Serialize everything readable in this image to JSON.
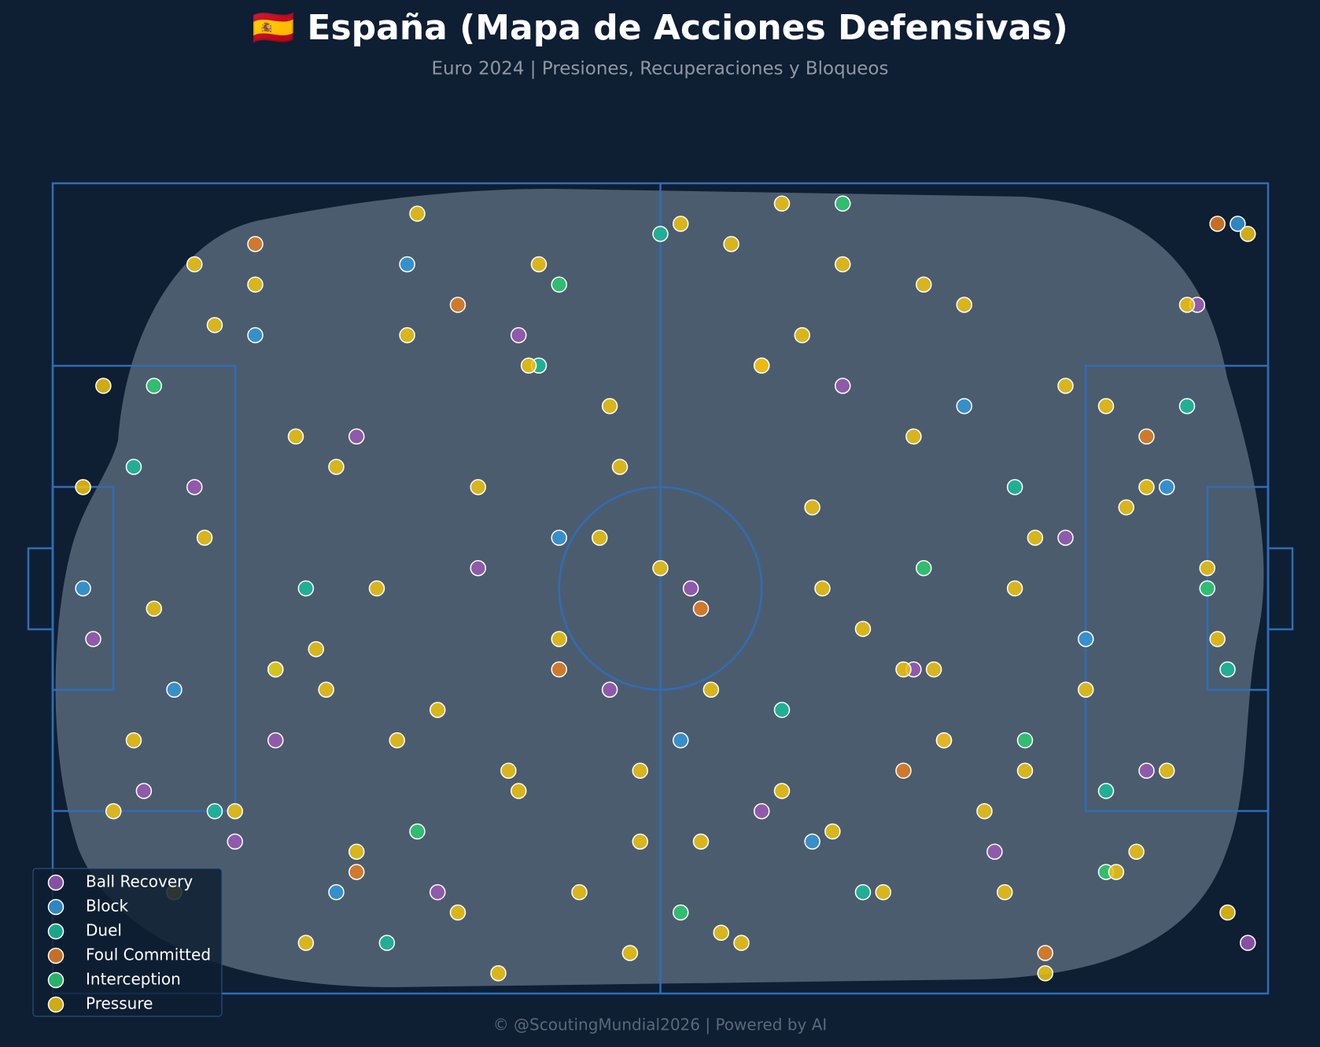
{
  "chart_data": {
    "type": "scatter",
    "title": "🇪🇸 España (Mapa de Acciones Defensivas)",
    "subtitle": "Euro 2024 | Presiones, Recuperaciones y Bloqueos",
    "footer": "© @ScoutingMundial2026 | Powered by AI",
    "xlim": [
      0,
      120
    ],
    "ylim": [
      0,
      80
    ],
    "legend": "lower left",
    "series": [
      {
        "name": "Ball Recovery",
        "color": "#9b59b6",
        "x": [
          4,
          9,
          14,
          22,
          30,
          38,
          46,
          55,
          63,
          70,
          78,
          85,
          93,
          100,
          108,
          113,
          118,
          18,
          42,
          88
        ],
        "values": [
          45,
          60,
          30,
          55,
          25,
          70,
          15,
          50,
          40,
          62,
          20,
          48,
          66,
          35,
          58,
          12,
          75,
          65,
          38,
          55
        ]
      },
      {
        "name": "Block",
        "color": "#3498db",
        "x": [
          3,
          12,
          20,
          28,
          35,
          50,
          62,
          75,
          90,
          102,
          110,
          117
        ],
        "values": [
          40,
          50,
          15,
          70,
          8,
          35,
          55,
          65,
          22,
          45,
          30,
          4
        ]
      },
      {
        "name": "Duel",
        "color": "#1abc9c",
        "x": [
          8,
          16,
          25,
          33,
          48,
          60,
          72,
          80,
          95,
          104,
          112,
          116
        ],
        "values": [
          28,
          62,
          40,
          75,
          18,
          5,
          52,
          70,
          30,
          60,
          22,
          48
        ]
      },
      {
        "name": "Foul Committed",
        "color": "#e67e22",
        "x": [
          20,
          30,
          40,
          50,
          64,
          70,
          84,
          98,
          108,
          115
        ],
        "values": [
          6,
          68,
          12,
          48,
          42,
          18,
          58,
          76,
          25,
          4
        ]
      },
      {
        "name": "Interception",
        "color": "#2ecc71",
        "x": [
          10,
          22,
          36,
          50,
          62,
          78,
          86,
          96,
          104,
          114
        ],
        "values": [
          20,
          48,
          64,
          10,
          72,
          2,
          38,
          55,
          68,
          40
        ]
      },
      {
        "name": "Pressure",
        "color": "#f1c40f",
        "x": [
          5,
          8,
          12,
          15,
          18,
          20,
          22,
          25,
          28,
          30,
          32,
          35,
          38,
          40,
          42,
          45,
          48,
          50,
          52,
          55,
          58,
          60,
          62,
          65,
          68,
          70,
          72,
          75,
          78,
          80,
          82,
          85,
          88,
          90,
          92,
          95,
          98,
          100,
          102,
          105,
          108,
          110,
          112,
          115,
          118,
          10,
          14,
          24,
          34,
          44,
          54,
          64,
          74,
          84,
          94,
          104,
          114,
          6,
          16,
          26,
          36,
          46,
          56,
          66,
          76,
          86,
          96,
          106,
          116,
          3,
          27,
          47,
          57,
          67,
          77,
          87,
          97,
          107,
          58,
          72
        ],
        "values": [
          20,
          55,
          70,
          35,
          62,
          10,
          48,
          75,
          28,
          66,
          40,
          15,
          52,
          72,
          30,
          58,
          8,
          45,
          70,
          22,
          65,
          38,
          4,
          50,
          75,
          18,
          60,
          32,
          8,
          44,
          70,
          25,
          55,
          12,
          62,
          40,
          78,
          20,
          50,
          68,
          30,
          58,
          12,
          45,
          5,
          42,
          8,
          25,
          55,
          78,
          35,
          65,
          15,
          48,
          70,
          22,
          38,
          62,
          14,
          46,
          3,
          60,
          28,
          74,
          40,
          10,
          58,
          32,
          72,
          30,
          50,
          18,
          76,
          6,
          64,
          48,
          35,
          66,
          58,
          2
        ]
      }
    ]
  }
}
